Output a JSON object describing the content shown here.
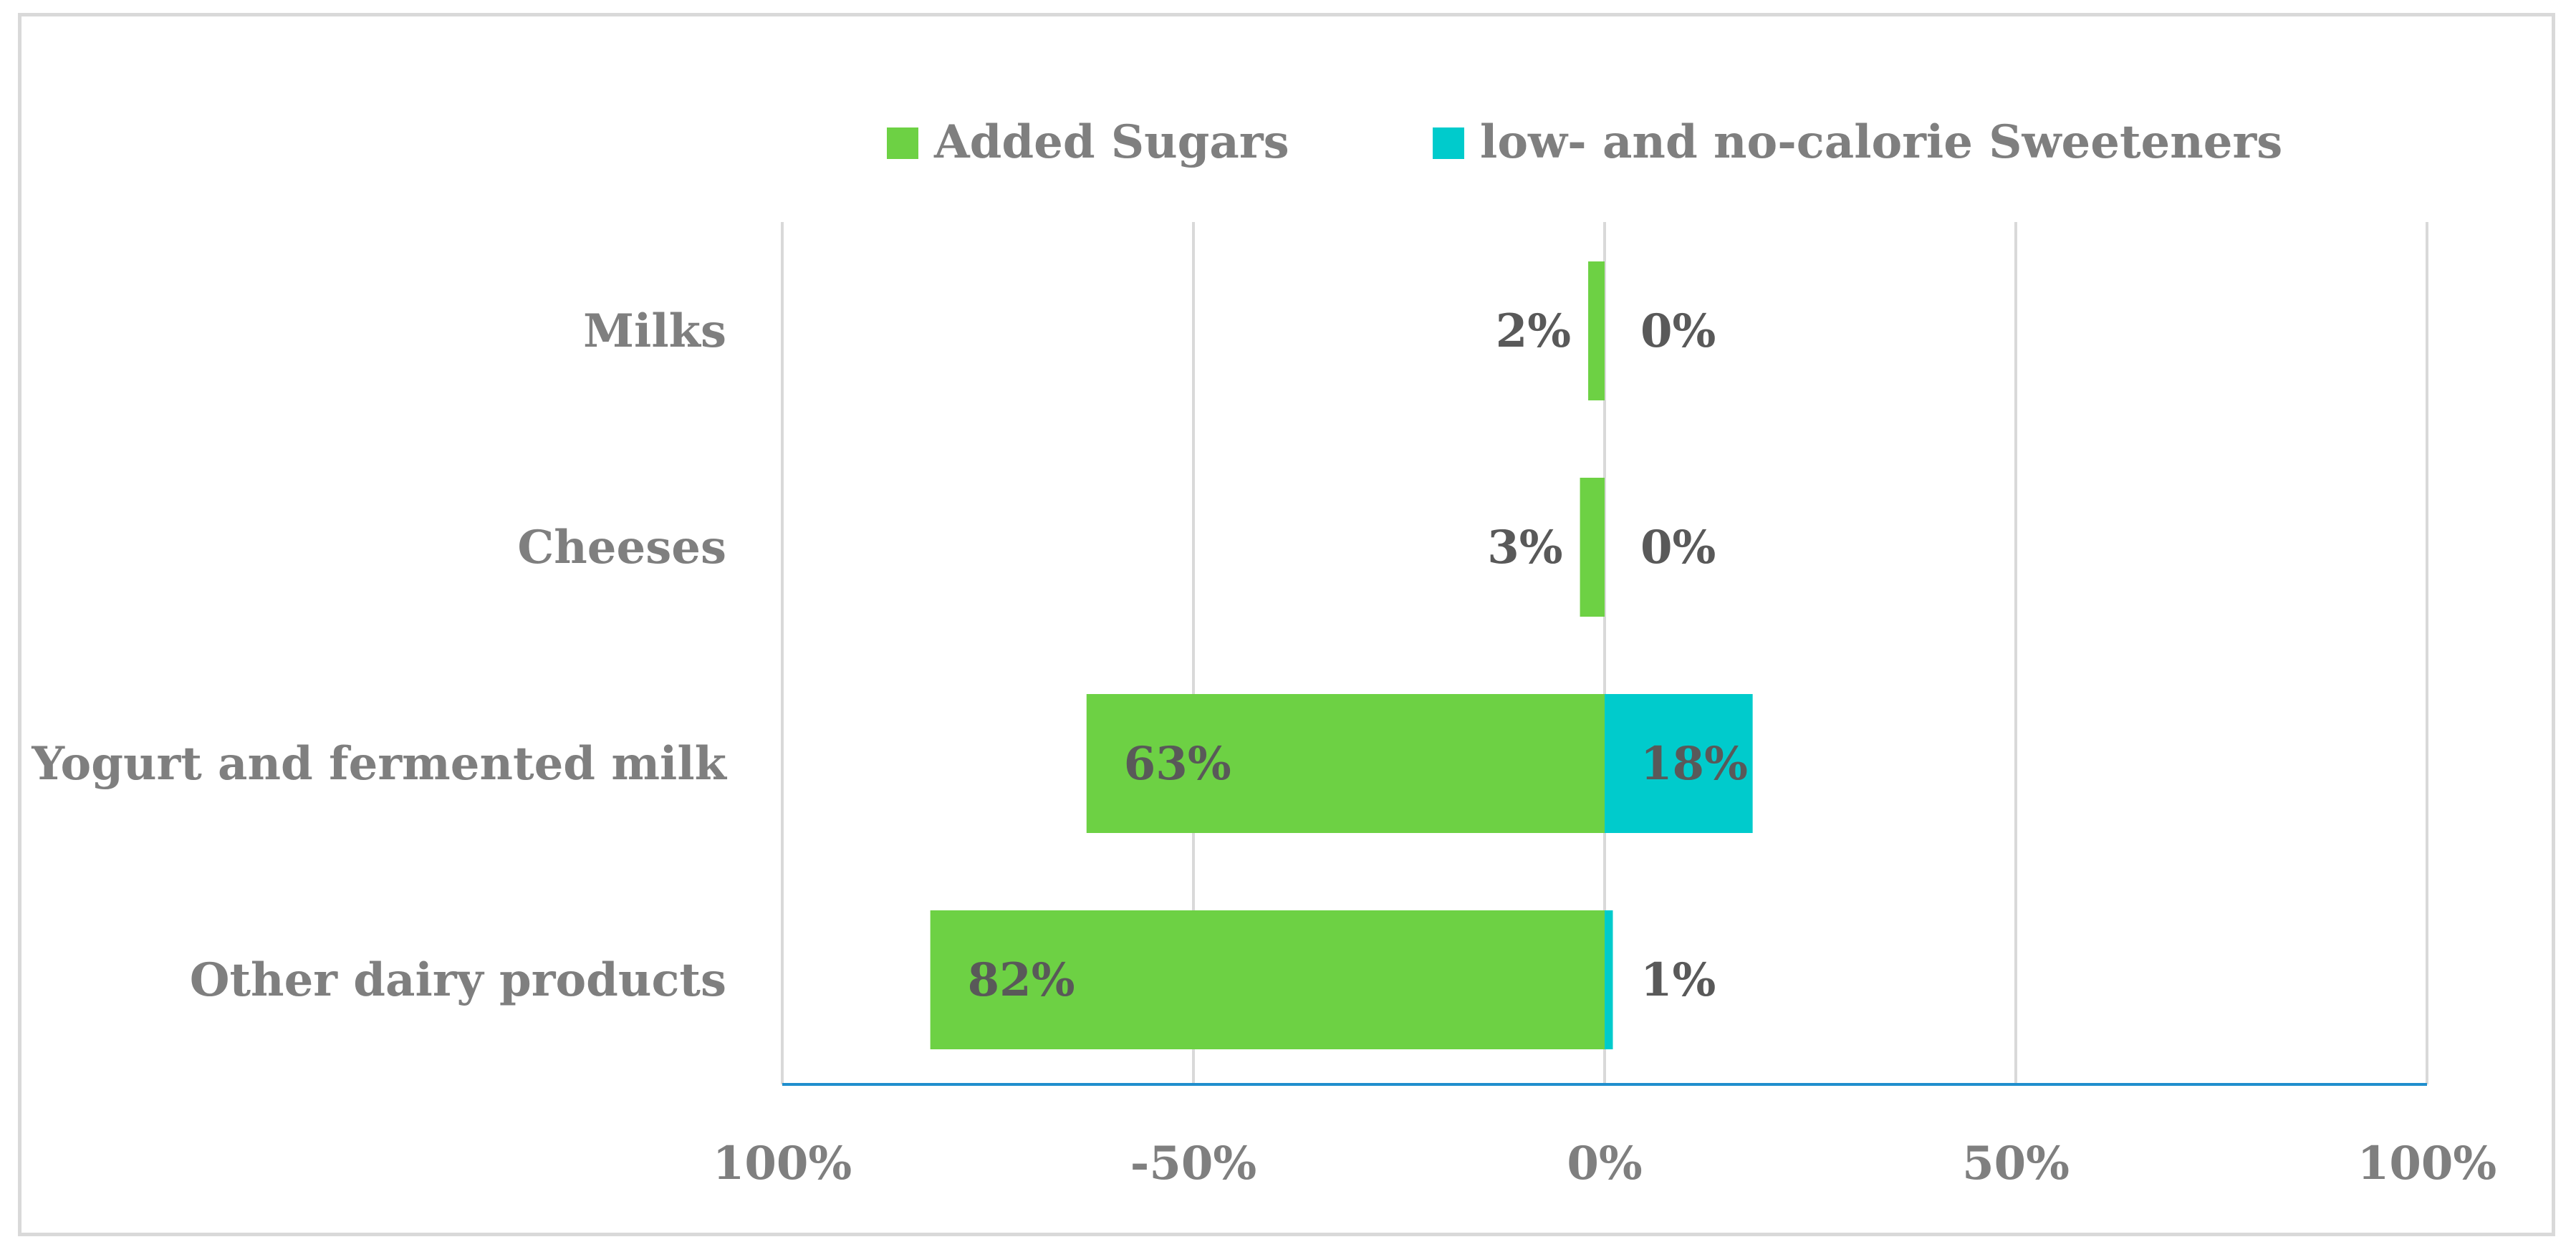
{
  "chart_data": {
    "type": "bar",
    "orientation": "horizontal",
    "diverging": true,
    "categories": [
      "Milks",
      "Cheeses",
      "Yogurt and fermented milk",
      "Other dairy products"
    ],
    "series": [
      {
        "name": "Added Sugars",
        "values": [
          2,
          3,
          63,
          82
        ],
        "direction": "left",
        "color": "#6dd144"
      },
      {
        "name": "low- and no-calorie Sweeteners",
        "values": [
          0,
          0,
          18,
          1
        ],
        "direction": "right",
        "color": "#00cbcc"
      }
    ],
    "data_labels": [
      [
        "2%",
        "3%",
        "63%",
        "82%"
      ],
      [
        "0%",
        "0%",
        "18%",
        "1%"
      ]
    ],
    "x_ticks": [
      -100,
      -50,
      0,
      50,
      100
    ],
    "x_tick_labels": [
      "100%",
      "-50%",
      "0%",
      "50%",
      "100%"
    ],
    "xlim": [
      -100,
      100
    ],
    "grid": true,
    "legend_position": "top",
    "title": "",
    "xlabel": "",
    "ylabel": "",
    "colors": {
      "gridline": "#d9d9d9",
      "axis_line": "#1f8ecd",
      "text": "#7f7f7f",
      "data_label": "#595959"
    }
  }
}
